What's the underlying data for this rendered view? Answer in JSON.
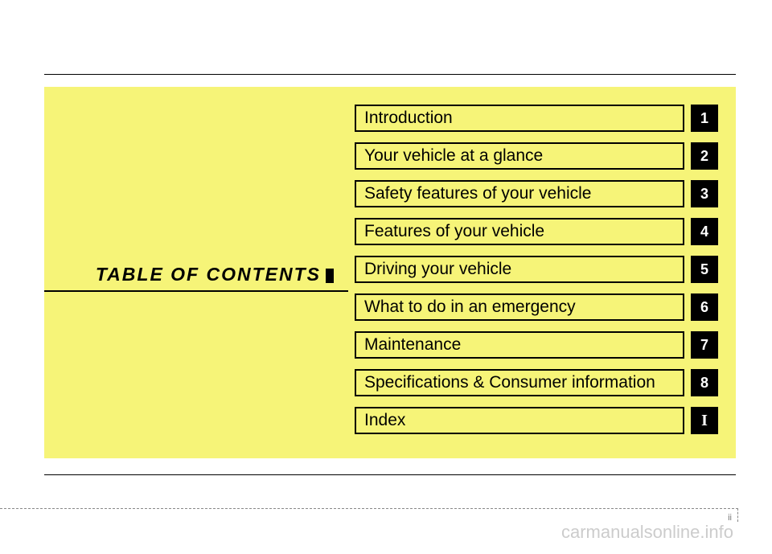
{
  "page": {
    "toc_title": "TABLE OF CONTENTS",
    "page_number": "ii",
    "watermark": "carmanualsonline.info",
    "panel_background": "#f6f478",
    "chapter_border_color": "#000000",
    "num_box_bg": "#000000",
    "num_box_fg": "#ffffff",
    "chapter_fontsize": 21,
    "num_fontsize": 18
  },
  "chapters": [
    {
      "label": "Introduction",
      "num": "1"
    },
    {
      "label": "Your vehicle at a glance",
      "num": "2"
    },
    {
      "label": "Safety features of your vehicle",
      "num": "3"
    },
    {
      "label": "Features of your vehicle",
      "num": "4"
    },
    {
      "label": "Driving your vehicle",
      "num": "5"
    },
    {
      "label": "What to do in an emergency",
      "num": "6"
    },
    {
      "label": "Maintenance",
      "num": "7"
    },
    {
      "label": "Specifications & Consumer information",
      "num": "8"
    },
    {
      "label": "Index",
      "num": "I"
    }
  ]
}
